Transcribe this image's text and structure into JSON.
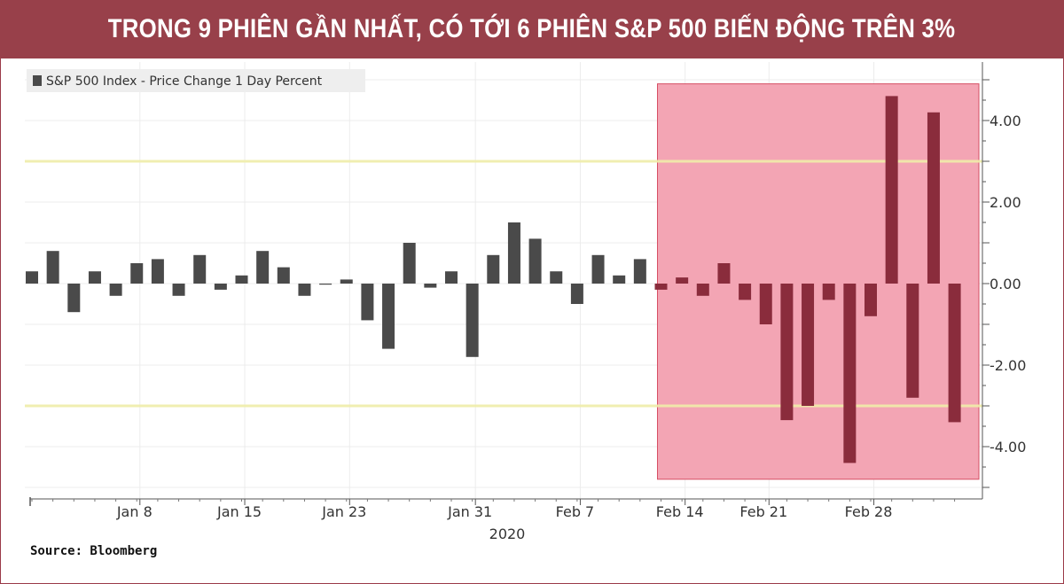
{
  "title": "TRONG 9 PHIÊN GẦN NHẤT, CÓ TỚI 6 PHIÊN S&P 500 BIẾN ĐỘNG TRÊN 3%",
  "source": "Source: Bloomberg",
  "colors": {
    "banner": "#98404a",
    "bar": "#4a4a4a",
    "bar_highlight": "#8a2c3c",
    "highlight_fill": "#f3a5b4",
    "highlight_border": "#d64f64",
    "threshold_line": "#f0eeaa"
  },
  "chart_data": {
    "type": "bar",
    "legend": "S&P 500 Index - Price Change 1 Day Percent",
    "ylim": [
      -5,
      5
    ],
    "yticks": [
      4,
      2,
      0,
      -2,
      -4
    ],
    "ytick_labels": [
      "4.00",
      "2.00",
      "0.00",
      "-2.00",
      "-4.00"
    ],
    "threshold_lines": [
      3,
      -3
    ],
    "xtick_labels": [
      {
        "label": "Jan 8",
        "index": 4.6
      },
      {
        "label": "Jan 15",
        "index": 9.6
      },
      {
        "label": "Jan 23",
        "index": 14.6
      },
      {
        "label": "Jan 31",
        "index": 20.6
      },
      {
        "label": "Feb 7",
        "index": 25.6
      },
      {
        "label": "Feb 14",
        "index": 30.6
      },
      {
        "label": "Feb 21",
        "index": 34.6
      },
      {
        "label": "Feb 28",
        "index": 39.6
      }
    ],
    "year_label": "2020",
    "values": [
      0.3,
      0.8,
      -0.7,
      0.3,
      -0.3,
      0.5,
      0.6,
      -0.3,
      0.7,
      -0.15,
      0.2,
      0.8,
      0.4,
      -0.3,
      0.0,
      0.1,
      -0.9,
      -1.6,
      1.0,
      -0.1,
      0.3,
      -1.8,
      0.7,
      1.5,
      1.1,
      0.3,
      -0.5,
      0.7,
      0.2,
      0.6,
      -0.15,
      0.15,
      -0.3,
      0.5,
      -0.4,
      -1.0,
      -3.35,
      -3.0,
      -0.4,
      -4.4,
      -0.8,
      4.6,
      -2.8,
      4.2,
      -3.4
    ],
    "highlight_start_index": 30,
    "highlight_range": [
      -4.8,
      4.9
    ]
  }
}
